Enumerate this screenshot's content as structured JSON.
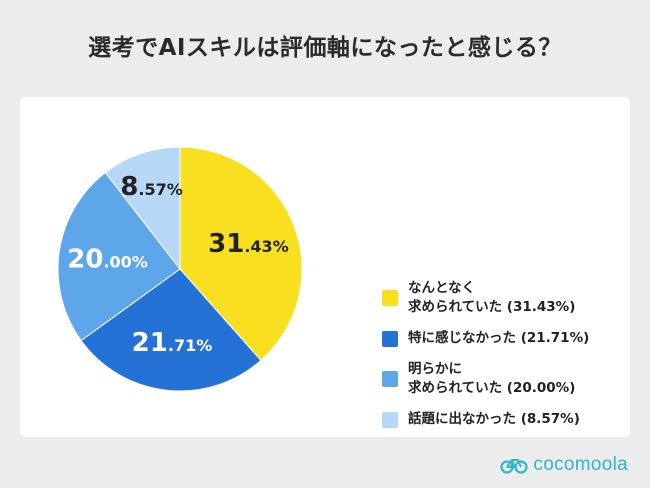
{
  "title": "選考でAIスキルは評価軸になったと感じる？",
  "brand": "cocomoola",
  "colors": {
    "brand": "#2fb6c8"
  },
  "chart_data": {
    "type": "pie",
    "title": "選考でAIスキルは評価軸になったと感じる？",
    "start_angle_deg": 0,
    "direction": "clockwise",
    "slices": [
      {
        "label": "なんとなく\n求められていた (31.43%)",
        "value": 31.43,
        "display_int": "31",
        "display_dec": ".43%",
        "color": "#f8e020",
        "label_color": "#222222"
      },
      {
        "label": "特に感じなかった (21.71%)",
        "value": 21.71,
        "display_int": "21",
        "display_dec": ".71%",
        "color": "#2472d6",
        "label_color": "#ffffff"
      },
      {
        "label": "明らかに\n求められていた (20.00%)",
        "value": 20.0,
        "display_int": "20",
        "display_dec": ".00%",
        "color": "#5ea6ea",
        "label_color": "#ffffff"
      },
      {
        "label": "話題に出なかった (8.57%)",
        "value": 8.57,
        "display_int": "8",
        "display_dec": ".57%",
        "color": "#b7d7f7",
        "label_color": "#222222"
      }
    ],
    "legend_position": "right"
  }
}
